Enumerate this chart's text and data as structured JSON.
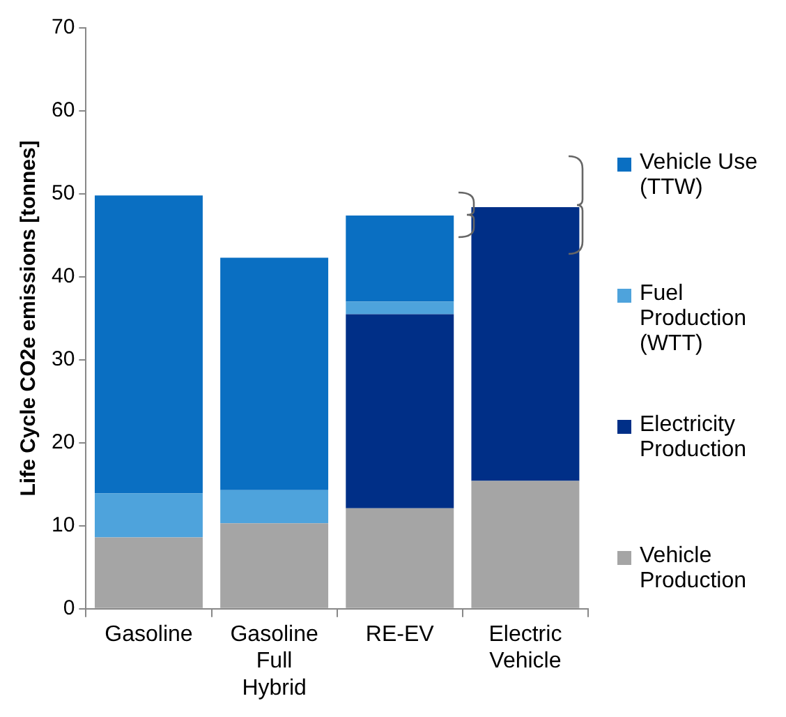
{
  "chart_data": {
    "type": "bar",
    "stacked": true,
    "ylabel": "Life Cycle CO2e emissions [tonnes]",
    "categories": [
      "Gasoline",
      "Gasoline Full Hybrid",
      "RE-EV",
      "Electric Vehicle"
    ],
    "series": [
      {
        "name": "Vehicle Production",
        "color": "#a5a5a5",
        "values": [
          8.6,
          10.3,
          12.1,
          15.4
        ]
      },
      {
        "name": "Electricity Production",
        "color": "#002f87",
        "values": [
          null,
          null,
          23.4,
          33.0
        ]
      },
      {
        "name": "Fuel Production (WTT)",
        "color": "#4ea3dc",
        "values": [
          5.3,
          4.0,
          1.5,
          null
        ]
      },
      {
        "name": "Vehicle Use (TTW)",
        "color": "#0a6fc2",
        "values": [
          35.9,
          28.0,
          10.4,
          null
        ]
      }
    ],
    "ylim": [
      0,
      70
    ],
    "yticks": [
      0,
      10,
      20,
      30,
      40,
      50,
      60,
      70
    ],
    "grid": false,
    "legend": "right"
  }
}
